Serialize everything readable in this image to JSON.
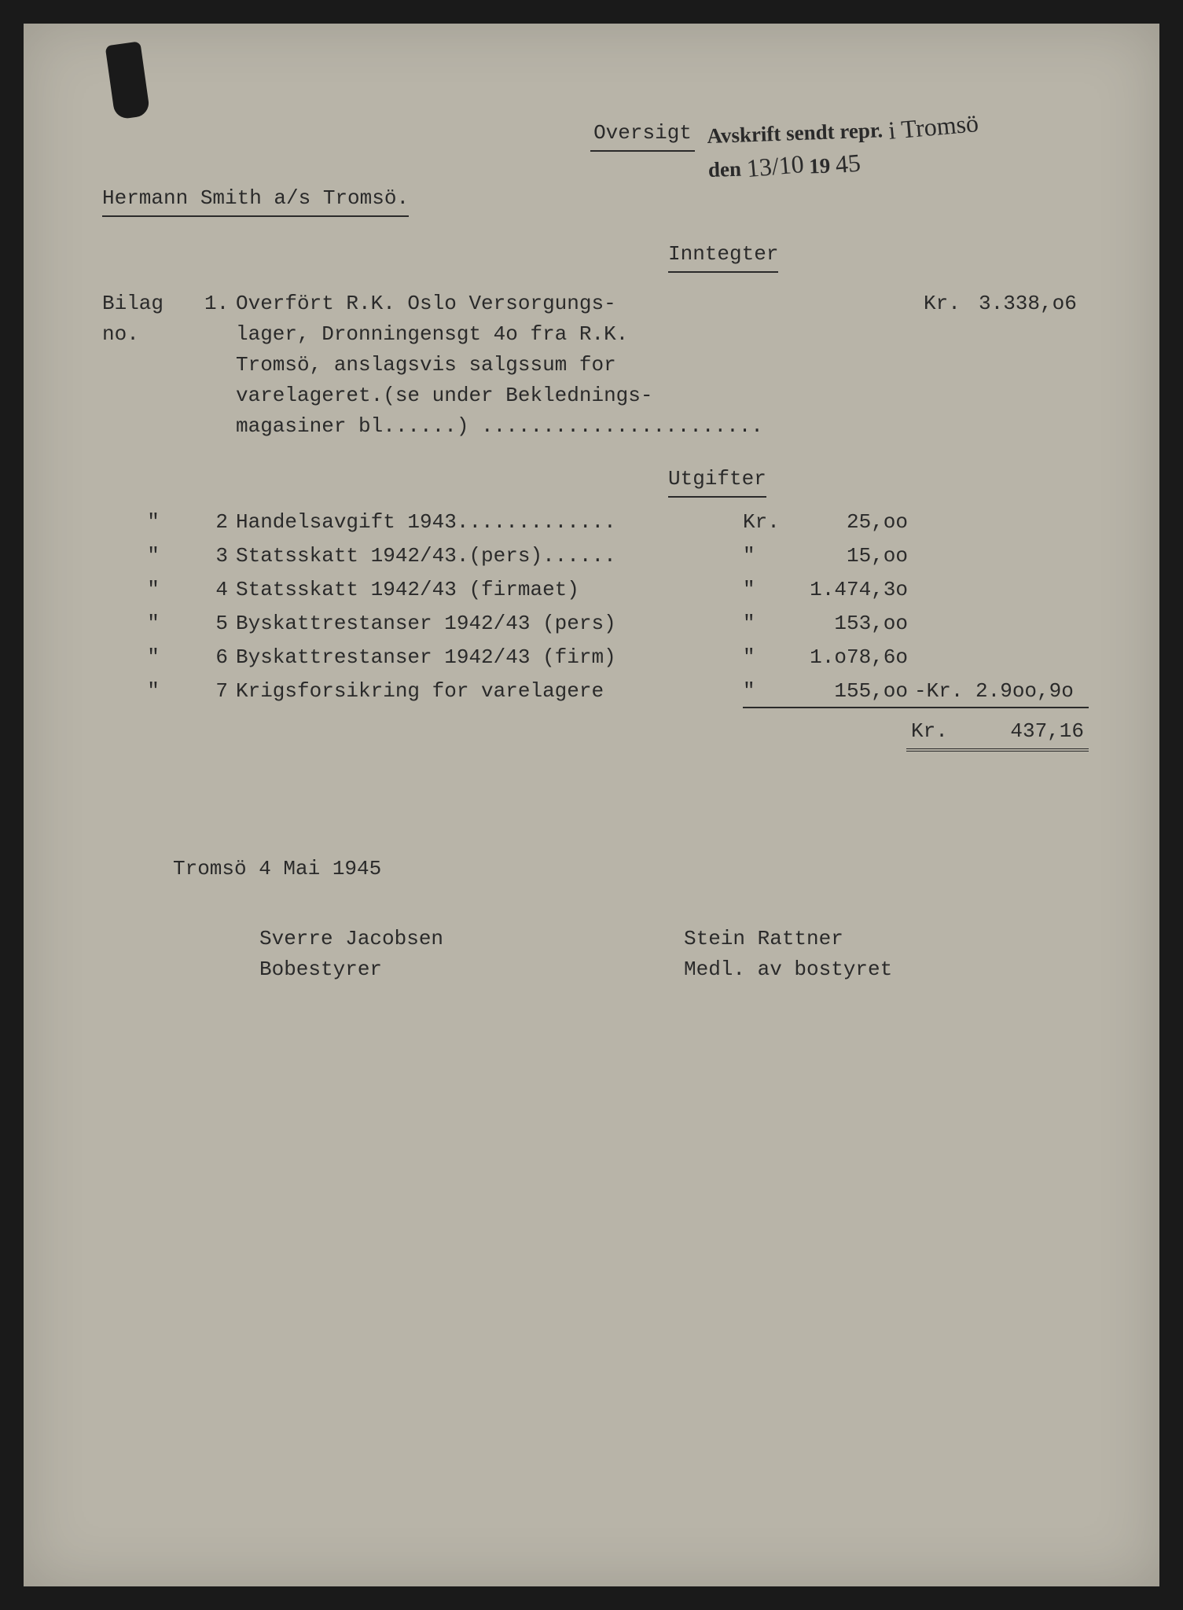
{
  "title": "Oversigt",
  "stamp": {
    "line1_prefix": "Avskrift sendt repr.",
    "line1_hand": "i Tromsö",
    "line2_prefix": "den",
    "line2_date": "13/10",
    "line2_year_prefix": "19",
    "line2_year_hand": "45"
  },
  "company": "Hermann Smith a/s Tromsö.",
  "section_inntegter": "Inntegter",
  "section_utgifter": "Utgifter",
  "bilag_label": "Bilag no.",
  "ditto": "\"",
  "entry1": {
    "num": "1.",
    "desc": "Overfört R.K. Oslo Versorgungs-\nlager, Dronningensgt 4o fra R.K.\nTromsö, anslagsvis salgssum for\nvarelageret.(se under Beklednings-\nmagasiner bl......) .......................",
    "cur": "Kr.",
    "amt": "3.338,o6"
  },
  "rows": [
    {
      "num": "2",
      "desc": "Handelsavgift 1943.............",
      "cur": "Kr.",
      "amt": "25,oo",
      "extra": ""
    },
    {
      "num": "3",
      "desc": "Statsskatt 1942/43.(pers)......",
      "cur": "\"",
      "amt": "15,oo",
      "extra": ""
    },
    {
      "num": "4",
      "desc": "Statsskatt 1942/43 (firmaet)",
      "cur": "\"",
      "amt": "1.474,3o",
      "extra": ""
    },
    {
      "num": "5",
      "desc": "Byskattrestanser 1942/43 (pers)",
      "cur": "\"",
      "amt": "153,oo",
      "extra": ""
    },
    {
      "num": "6",
      "desc": "Byskattrestanser 1942/43 (firm)",
      "cur": "\"",
      "amt": "1.o78,6o",
      "extra": ""
    },
    {
      "num": "7",
      "desc": "Krigsforsikring for varelagere",
      "cur": "\"",
      "amt": "155,oo",
      "extra": "-Kr. 2.9oo,9o"
    }
  ],
  "total": {
    "cur": "Kr.",
    "amt": "437,16"
  },
  "date_line": "Tromsö 4 Mai 1945",
  "sign1": {
    "name": "Sverre Jacobsen",
    "role": "Bobestyrer"
  },
  "sign2": {
    "name": "Stein Rattner",
    "role": "Medl. av bostyret"
  },
  "colors": {
    "page_bg": "#b8b4a8",
    "text": "#2a2a2a",
    "outer_bg": "#1a1a1a"
  },
  "typography": {
    "body_font": "Courier New",
    "body_size_pt": 20,
    "stamp_font": "Georgia serif bold"
  }
}
